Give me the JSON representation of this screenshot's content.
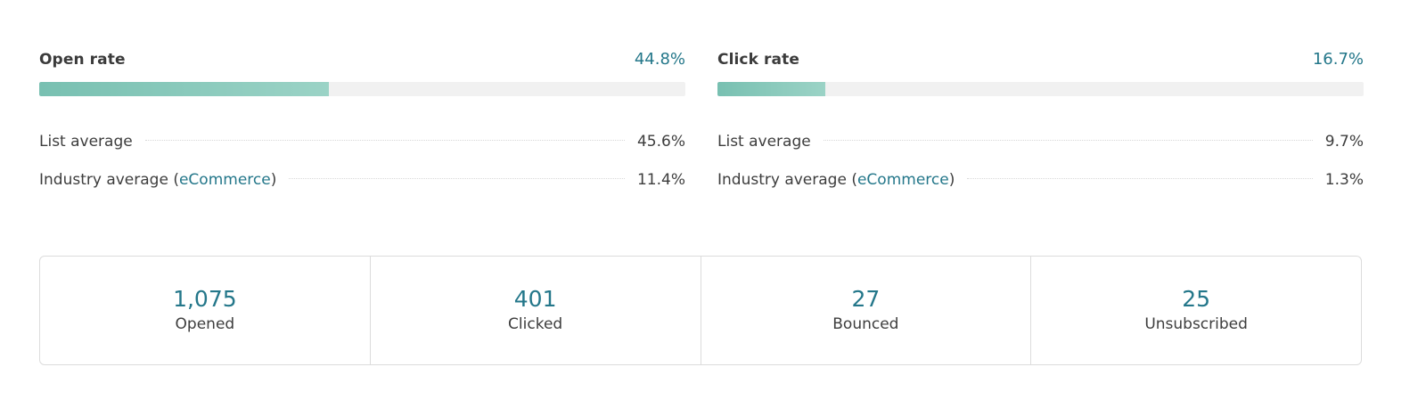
{
  "open_rate": {
    "title": "Open rate",
    "value": "44.8%",
    "fill_percent": 44.8,
    "list_average": {
      "label": "List average",
      "value": "45.6%"
    },
    "industry_average": {
      "label_prefix": "Industry average (",
      "industry_link": "eCommerce",
      "label_suffix": ")",
      "value": "11.4%"
    }
  },
  "click_rate": {
    "title": "Click rate",
    "value": "16.7%",
    "fill_percent": 16.7,
    "list_average": {
      "label": "List average",
      "value": "9.7%"
    },
    "industry_average": {
      "label_prefix": "Industry average (",
      "industry_link": "eCommerce",
      "label_suffix": ")",
      "value": "1.3%"
    }
  },
  "stats": [
    {
      "value": "1,075",
      "label": "Opened"
    },
    {
      "value": "401",
      "label": "Clicked"
    },
    {
      "value": "27",
      "label": "Bounced"
    },
    {
      "value": "25",
      "label": "Unsubscribed"
    }
  ],
  "colors": {
    "accent": "#24778a",
    "bar_fill_start": "#78c0b1",
    "bar_fill_end": "#9bd3c6",
    "bar_track": "#f1f1f1"
  }
}
